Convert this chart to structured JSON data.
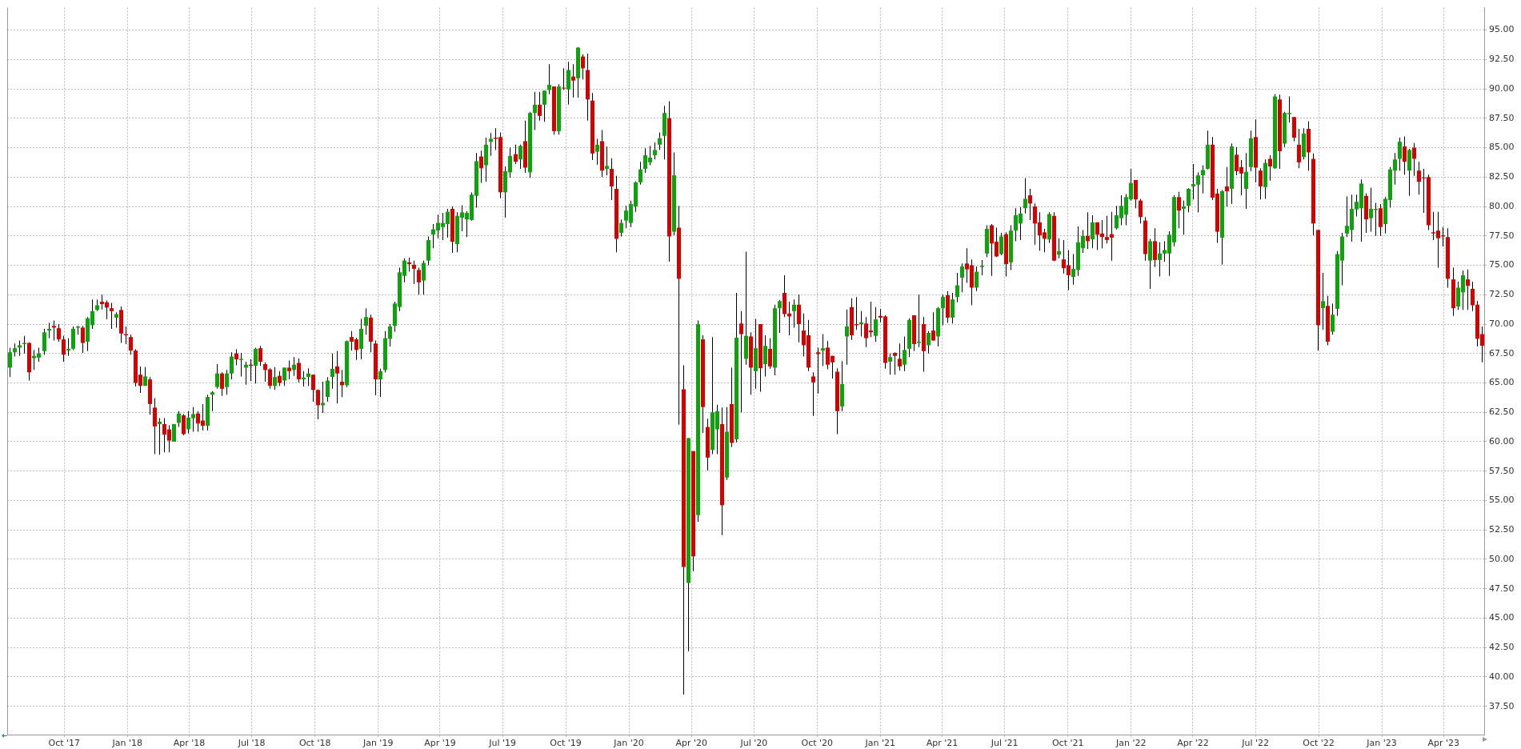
{
  "chart_data": {
    "type": "candlestick",
    "colors": [
      "#0ca30c",
      "#0ca30c",
      "#0ca30c",
      "#0ca30c",
      "#d50000",
      "#0ca30c",
      "#0ca30c",
      "#0ca30c",
      "#0ca30c",
      "#d50000",
      "#d50000",
      "#d50000",
      "#0ca30c",
      "#0ca30c",
      "#0ca30c",
      "#d50000",
      "#0ca30c",
      "#0ca30c",
      "#0ca30c",
      "#d50000",
      "#d50000",
      "#d50000",
      "#0ca30c",
      "#d50000",
      "#d50000",
      "#d50000",
      "#d50000",
      "#d50000",
      "#0ca30c",
      "#d50000",
      "#d50000",
      "#0ca30c",
      "#d50000",
      "#d50000",
      "#0ca30c",
      "#0ca30c",
      "#d50000",
      "#0ca30c",
      "#0ca30c",
      "#d50000",
      "#d50000",
      "#0ca30c",
      "#0ca30c",
      "#0ca30c",
      "#d50000",
      "#0ca30c",
      "#0ca30c",
      "#d50000",
      "#0ca30c",
      "#0ca30c",
      "#d50000",
      "#0ca30c",
      "#d50000",
      "#d50000",
      "#d50000",
      "#0ca30c",
      "#d50000",
      "#0ca30c",
      "#d50000",
      "#0ca30c",
      "#d50000",
      "#0ca30c",
      "#0ca30c",
      "#d50000",
      "#d50000",
      "#0ca30c",
      "#0ca30c",
      "#0ca30c",
      "#d50000",
      "#d50000",
      "#0ca30c",
      "#d50000",
      "#d50000",
      "#0ca30c",
      "#0ca30c",
      "#d50000",
      "#d50000",
      "#0ca30c",
      "#0ca30c",
      "#0ca30c",
      "#0ca30c",
      "#0ca30c",
      "#0ca30c",
      "#d50000",
      "#d50000",
      "#d50000",
      "#0ca30c",
      "#0ca30c",
      "#0ca30c",
      "#0ca30c",
      "#0ca30c",
      "#0ca30c",
      "#d50000",
      "#0ca30c",
      "#0ca30c",
      "#0ca30c",
      "#0ca30c",
      "#0ca30c",
      "#d50000",
      "#0ca30c",
      "#0ca30c",
      "#d50000",
      "#d50000",
      "#0ca30c",
      "#0ca30c",
      "#d50000",
      "#0ca30c",
      "#d50000",
      "#0ca30c",
      "#0ca30c",
      "#d50000",
      "#0ca30c",
      "#0ca30c",
      "#d50000",
      "#0ca30c",
      "#d50000",
      "#0ca30c",
      "#d50000",
      "#0ca30c",
      "#d50000",
      "#d50000",
      "#d50000",
      "#0ca30c",
      "#d50000",
      "#0ca30c",
      "#d50000",
      "#d50000",
      "#0ca30c",
      "#0ca30c",
      "#0ca30c",
      "#0ca30c",
      "#0ca30c",
      "#0ca30c",
      "#0ca30c",
      "#0ca30c",
      "#0ca30c",
      "#0ca30c",
      "#d50000",
      "#0ca30c",
      "#d50000",
      "#d50000",
      "#0ca30c",
      "#d50000",
      "#0ca30c",
      "#d50000",
      "#d50000",
      "#0ca30c",
      "#0ca30c",
      "#d50000",
      "#0ca30c",
      "#d50000",
      "#0ca30c",
      "#d50000",
      "#0ca30c",
      "#d50000",
      "#0ca30c",
      "#d50000",
      "#0ca30c",
      "#d50000",
      "#0ca30c",
      "#0ca30c",
      "#d50000",
      "#d50000",
      "#0ca30c",
      "#d50000",
      "#d50000",
      "#d50000",
      "#d50000",
      "#d50000",
      "#0ca30c",
      "#d50000",
      "#d50000",
      "#d50000",
      "#0ca30c",
      "#0ca30c",
      "#d50000",
      "#d50000",
      "#0ca30c",
      "#d50000",
      "#d50000",
      "#0ca30c",
      "#d50000",
      "#d50000",
      "#0ca30c",
      "#d50000",
      "#d50000",
      "#0ca30c",
      "#0ca30c",
      "#d50000",
      "#0ca30c",
      "#d50000",
      "#0ca30c",
      "#d50000",
      "#0ca30c",
      "#0ca30c",
      "#d50000",
      "#0ca30c",
      "#0ca30c",
      "#0ca30c",
      "#d50000",
      "#d50000",
      "#0ca30c",
      "#0ca30c",
      "#0ca30c",
      "#d50000",
      "#d50000",
      "#0ca30c",
      "#d50000",
      "#0ca30c",
      "#0ca30c",
      "#0ca30c",
      "#0ca30c",
      "#d50000",
      "#d50000",
      "#d50000",
      "#d50000",
      "#0ca30c",
      "#d50000",
      "#0ca30c",
      "#d50000",
      "#d50000",
      "#0ca30c",
      "#0ca30c",
      "#0ca30c",
      "#d50000",
      "#0ca30c",
      "#d50000",
      "#d50000",
      "#d50000",
      "#d50000",
      "#0ca30c",
      "#0ca30c",
      "#0ca30c",
      "#0ca30c",
      "#d50000",
      "#d50000",
      "#d50000",
      "#0ca30c",
      "#d50000",
      "#0ca30c",
      "#0ca30c",
      "#0ca30c",
      "#0ca30c",
      "#d50000",
      "#0ca30c",
      "#0ca30c",
      "#0ca30c",
      "#0ca30c",
      "#0ca30c",
      "#0ca30c",
      "#d50000",
      "#d50000",
      "#0ca30c",
      "#d50000",
      "#0ca30c",
      "#d50000",
      "#d50000",
      "#0ca30c",
      "#0ca30c",
      "#d50000",
      "#d50000",
      "#0ca30c",
      "#d50000",
      "#0ca30c",
      "#d50000",
      "#0ca30c",
      "#0ca30c",
      "#d50000",
      "#d50000",
      "#0ca30c",
      "#d50000",
      "#d50000",
      "#d50000",
      "#0ca30c",
      "#d50000",
      "#0ca30c",
      "#0ca30c",
      "#0ca30c",
      "#0ca30c",
      "#0ca30c",
      "#0ca30c",
      "#0ca30c",
      "#d50000",
      "#0ca30c",
      "#0ca30c",
      "#d50000",
      "#0ca30c",
      "#0ca30c",
      "#0ca30c",
      "#0ca30c",
      "#d50000",
      "#0ca30c",
      "#d50000",
      "#d50000",
      "#d50000",
      "#d50000",
      "#d50000",
      "#d50000",
      "#d50000",
      "#d50000",
      "#d50000",
      "#0ca30c",
      "#0ca30c",
      "#d50000",
      "#d50000",
      "#d50000",
      "#d50000"
    ],
    "grid": true,
    "ylim": [
      35.1,
      96.9
    ],
    "yticks": [
      {
        "value": 37.5,
        "label": "37.50"
      },
      {
        "value": 40,
        "label": "40.00"
      },
      {
        "value": 42.5,
        "label": "42.50"
      },
      {
        "value": 45,
        "label": "45.00"
      },
      {
        "value": 47.5,
        "label": "47.50"
      },
      {
        "value": 50,
        "label": "50.00"
      },
      {
        "value": 52.5,
        "label": "52.50"
      },
      {
        "value": 55,
        "label": "55.00"
      },
      {
        "value": 57.5,
        "label": "57.50"
      },
      {
        "value": 60,
        "label": "60.00"
      },
      {
        "value": 62.5,
        "label": "62.50"
      },
      {
        "value": 65,
        "label": "65.00"
      },
      {
        "value": 67.5,
        "label": "67.50"
      },
      {
        "value": 70,
        "label": "70.00"
      },
      {
        "value": 72.5,
        "label": "72.50"
      },
      {
        "value": 75,
        "label": "75.00"
      },
      {
        "value": 77.5,
        "label": "77.50"
      },
      {
        "value": 80,
        "label": "80.00"
      },
      {
        "value": 82.5,
        "label": "82.50"
      },
      {
        "value": 85,
        "label": "85.00"
      },
      {
        "value": 87.5,
        "label": "87.50"
      },
      {
        "value": 90,
        "label": "90.00"
      },
      {
        "value": 92.5,
        "label": "92.50"
      },
      {
        "value": 95,
        "label": "95.00"
      }
    ],
    "xlim": [
      "2017-07-10",
      "2023-05-30"
    ],
    "xticks": [
      {
        "value": "2017-10-01",
        "label": "Oct '17"
      },
      {
        "value": "2018-01-01",
        "label": "Jan '18"
      },
      {
        "value": "2018-04-01",
        "label": "Apr '18"
      },
      {
        "value": "2018-07-01",
        "label": "Jul '18"
      },
      {
        "value": "2018-10-01",
        "label": "Oct '18"
      },
      {
        "value": "2019-01-01",
        "label": "Jan '19"
      },
      {
        "value": "2019-04-01",
        "label": "Apr '19"
      },
      {
        "value": "2019-07-01",
        "label": "Jul '19"
      },
      {
        "value": "2019-10-01",
        "label": "Oct '19"
      },
      {
        "value": "2020-01-01",
        "label": "Jan '20"
      },
      {
        "value": "2020-04-01",
        "label": "Apr '20"
      },
      {
        "value": "2020-07-01",
        "label": "Jul '20"
      },
      {
        "value": "2020-10-01",
        "label": "Oct '20"
      },
      {
        "value": "2021-01-01",
        "label": "Jan '21"
      },
      {
        "value": "2021-04-01",
        "label": "Apr '21"
      },
      {
        "value": "2021-07-01",
        "label": "Jul '21"
      },
      {
        "value": "2021-10-01",
        "label": "Oct '21"
      },
      {
        "value": "2022-01-01",
        "label": "Jan '22"
      },
      {
        "value": "2022-04-01",
        "label": "Apr '22"
      },
      {
        "value": "2022-07-01",
        "label": "Jul '22"
      },
      {
        "value": "2022-10-01",
        "label": "Oct '22"
      },
      {
        "value": "2023-01-01",
        "label": "Jan '23"
      },
      {
        "value": "2023-04-01",
        "label": "Apr '23"
      }
    ],
    "x": [
      "2017-07-14",
      "2017-07-21",
      "2017-07-28",
      "2017-08-04",
      "2017-08-11",
      "2017-08-18",
      "2017-08-25",
      "2017-09-01",
      "2017-09-08",
      "2017-09-15",
      "2017-09-22",
      "2017-09-29",
      "2017-10-06",
      "2017-10-13",
      "2017-10-20",
      "2017-10-27",
      "2017-11-03",
      "2017-11-10",
      "2017-11-17",
      "2017-11-24",
      "2017-12-01",
      "2017-12-08",
      "2017-12-15",
      "2017-12-22",
      "2017-12-29",
      "2018-01-05",
      "2018-01-12",
      "2018-01-19",
      "2018-01-26",
      "2018-02-02",
      "2018-02-09",
      "2018-02-16",
      "2018-02-23",
      "2018-03-02",
      "2018-03-09",
      "2018-03-16",
      "2018-03-23",
      "2018-03-30",
      "2018-04-06",
      "2018-04-13",
      "2018-04-20",
      "2018-04-27",
      "2018-05-04",
      "2018-05-11",
      "2018-05-18",
      "2018-05-25",
      "2018-06-01",
      "2018-06-08",
      "2018-06-15",
      "2018-06-22",
      "2018-06-29",
      "2018-07-06",
      "2018-07-13",
      "2018-07-20",
      "2018-07-27",
      "2018-08-03",
      "2018-08-10",
      "2018-08-17",
      "2018-08-24",
      "2018-08-31",
      "2018-09-07",
      "2018-09-14",
      "2018-09-21",
      "2018-09-28",
      "2018-10-05",
      "2018-10-12",
      "2018-10-19",
      "2018-10-26",
      "2018-11-02",
      "2018-11-09",
      "2018-11-16",
      "2018-11-23",
      "2018-11-30",
      "2018-12-07",
      "2018-12-14",
      "2018-12-21",
      "2018-12-28",
      "2019-01-04",
      "2019-01-11",
      "2019-01-18",
      "2019-01-25",
      "2019-02-01",
      "2019-02-08",
      "2019-02-15",
      "2019-02-22",
      "2019-03-01",
      "2019-03-08",
      "2019-03-15",
      "2019-03-22",
      "2019-03-29",
      "2019-04-05",
      "2019-04-12",
      "2019-04-19",
      "2019-04-26",
      "2019-05-03",
      "2019-05-10",
      "2019-05-17",
      "2019-05-24",
      "2019-05-31",
      "2019-06-07",
      "2019-06-14",
      "2019-06-21",
      "2019-06-28",
      "2019-07-05",
      "2019-07-12",
      "2019-07-19",
      "2019-07-26",
      "2019-08-02",
      "2019-08-09",
      "2019-08-16",
      "2019-08-23",
      "2019-08-30",
      "2019-09-06",
      "2019-09-13",
      "2019-09-20",
      "2019-09-27",
      "2019-10-04",
      "2019-10-11",
      "2019-10-18",
      "2019-10-25",
      "2019-11-01",
      "2019-11-08",
      "2019-11-15",
      "2019-11-22",
      "2019-11-29",
      "2019-12-06",
      "2019-12-13",
      "2019-12-20",
      "2019-12-27",
      "2020-01-03",
      "2020-01-10",
      "2020-01-17",
      "2020-01-24",
      "2020-01-31",
      "2020-02-07",
      "2020-02-14",
      "2020-02-21",
      "2020-02-28",
      "2020-03-06",
      "2020-03-13",
      "2020-03-20",
      "2020-03-27",
      "2020-04-03",
      "2020-04-10",
      "2020-04-17",
      "2020-04-24",
      "2020-05-01",
      "2020-05-08",
      "2020-05-15",
      "2020-05-22",
      "2020-05-29",
      "2020-06-05",
      "2020-06-12",
      "2020-06-19",
      "2020-06-26",
      "2020-07-03",
      "2020-07-10",
      "2020-07-17",
      "2020-07-24",
      "2020-07-31",
      "2020-08-07",
      "2020-08-14",
      "2020-08-21",
      "2020-08-28",
      "2020-09-04",
      "2020-09-11",
      "2020-09-18",
      "2020-09-25",
      "2020-10-02",
      "2020-10-09",
      "2020-10-16",
      "2020-10-23",
      "2020-10-30",
      "2020-11-06",
      "2020-11-13",
      "2020-11-20",
      "2020-11-27",
      "2020-12-04",
      "2020-12-11",
      "2020-12-18",
      "2020-12-25",
      "2021-01-01",
      "2021-01-08",
      "2021-01-15",
      "2021-01-22",
      "2021-01-29",
      "2021-02-05",
      "2021-02-12",
      "2021-02-19",
      "2021-02-26",
      "2021-03-05",
      "2021-03-12",
      "2021-03-19",
      "2021-03-26",
      "2021-04-02",
      "2021-04-09",
      "2021-04-16",
      "2021-04-23",
      "2021-04-30",
      "2021-05-07",
      "2021-05-14",
      "2021-05-21",
      "2021-05-28",
      "2021-06-04",
      "2021-06-11",
      "2021-06-18",
      "2021-06-25",
      "2021-07-02",
      "2021-07-09",
      "2021-07-16",
      "2021-07-23",
      "2021-07-30",
      "2021-08-06",
      "2021-08-13",
      "2021-08-20",
      "2021-08-27",
      "2021-09-03",
      "2021-09-10",
      "2021-09-17",
      "2021-09-24",
      "2021-10-01",
      "2021-10-08",
      "2021-10-15",
      "2021-10-22",
      "2021-10-29",
      "2021-11-05",
      "2021-11-12",
      "2021-11-19",
      "2021-11-26",
      "2021-12-03",
      "2021-12-10",
      "2021-12-17",
      "2021-12-24",
      "2021-12-31",
      "2022-01-07",
      "2022-01-14",
      "2022-01-21",
      "2022-01-28",
      "2022-02-04",
      "2022-02-11",
      "2022-02-18",
      "2022-02-25",
      "2022-03-04",
      "2022-03-11",
      "2022-03-18",
      "2022-03-25",
      "2022-04-01",
      "2022-04-08",
      "2022-04-15",
      "2022-04-22",
      "2022-04-29",
      "2022-05-06",
      "2022-05-13",
      "2022-05-20",
      "2022-05-27",
      "2022-06-03",
      "2022-06-10",
      "2022-06-17",
      "2022-06-24",
      "2022-07-01",
      "2022-07-08",
      "2022-07-15",
      "2022-07-22",
      "2022-07-29",
      "2022-08-05",
      "2022-08-12",
      "2022-08-19",
      "2022-08-26",
      "2022-09-02",
      "2022-09-09",
      "2022-09-16",
      "2022-09-23",
      "2022-09-30",
      "2022-10-07",
      "2022-10-14",
      "2022-10-21",
      "2022-10-28",
      "2022-11-04",
      "2022-11-11",
      "2022-11-18",
      "2022-11-25",
      "2022-12-02",
      "2022-12-09",
      "2022-12-16",
      "2022-12-23",
      "2022-12-30",
      "2023-01-06",
      "2023-01-13",
      "2023-01-20",
      "2023-01-27",
      "2023-02-03",
      "2023-02-10",
      "2023-02-17",
      "2023-02-24",
      "2023-03-03",
      "2023-03-10",
      "2023-03-17",
      "2023-03-24",
      "2023-03-31",
      "2023-04-07",
      "2023-04-14",
      "2023-04-21",
      "2023-04-28",
      "2023-05-05",
      "2023-05-12",
      "2023-05-19",
      "2023-05-26"
    ],
    "ohlc": [
      [
        66.3,
        68.0,
        65.5,
        67.6
      ],
      [
        67.6,
        68.35,
        67.25,
        67.95
      ],
      [
        68.0,
        68.6,
        67.3,
        68.2
      ],
      [
        68.3,
        69.0,
        67.5,
        68.4
      ],
      [
        68.4,
        68.45,
        65.2,
        65.9
      ],
      [
        67.1,
        67.8,
        66.1,
        67.3
      ],
      [
        67.15,
        68.0,
        66.8,
        67.5
      ],
      [
        67.7,
        69.6,
        67.4,
        69.3
      ],
      [
        69.45,
        70.1,
        68.8,
        69.6
      ],
      [
        69.85,
        70.3,
        68.6,
        69.7
      ],
      [
        69.65,
        70.0,
        68.5,
        68.7
      ],
      [
        68.7,
        69.0,
        66.8,
        67.4
      ],
      [
        67.75,
        68.8,
        67.3,
        67.9
      ],
      [
        67.9,
        69.8,
        67.8,
        69.6
      ],
      [
        69.7,
        69.85,
        69.1,
        69.8
      ],
      [
        69.7,
        69.85,
        67.55,
        68.4
      ],
      [
        68.5,
        70.6,
        67.7,
        70.5
      ],
      [
        69.9,
        72.1,
        69.6,
        71.1
      ],
      [
        71.2,
        72.1,
        71.1,
        71.6
      ],
      [
        71.9,
        72.5,
        71.25,
        71.7
      ],
      [
        71.85,
        72.0,
        70.4,
        71.4
      ],
      [
        71.35,
        71.8,
        69.6,
        71.1
      ],
      [
        70.55,
        71.0,
        69.7,
        70.85
      ],
      [
        71.2,
        71.5,
        68.4,
        69.2
      ],
      [
        69.15,
        69.8,
        68.3,
        69.05
      ],
      [
        68.9,
        69.1,
        67.4,
        67.75
      ],
      [
        67.75,
        67.85,
        64.7,
        65.0
      ],
      [
        65.7,
        66.4,
        64.15,
        64.75
      ],
      [
        64.75,
        66.35,
        64.75,
        65.55
      ],
      [
        65.3,
        65.5,
        62.3,
        63.2
      ],
      [
        62.9,
        63.7,
        58.95,
        61.3
      ],
      [
        61.5,
        62.0,
        58.9,
        61.7
      ],
      [
        61.5,
        62.0,
        59.1,
        60.6
      ],
      [
        61.05,
        61.4,
        59.1,
        60.1
      ],
      [
        60.0,
        61.5,
        60.0,
        61.5
      ],
      [
        61.6,
        62.6,
        61.25,
        62.4
      ],
      [
        62.25,
        62.35,
        60.55,
        60.65
      ],
      [
        61.05,
        62.6,
        60.7,
        62.05
      ],
      [
        62.0,
        62.95,
        60.85,
        62.35
      ],
      [
        62.4,
        62.6,
        60.85,
        61.55
      ],
      [
        61.8,
        63.2,
        60.95,
        61.35
      ],
      [
        61.35,
        64.0,
        60.95,
        63.8
      ],
      [
        64.0,
        64.3,
        62.6,
        64.2
      ],
      [
        64.65,
        66.6,
        64.5,
        65.8
      ],
      [
        65.8,
        65.9,
        63.9,
        64.5
      ],
      [
        64.65,
        66.1,
        64.0,
        65.8
      ],
      [
        65.8,
        67.6,
        65.3,
        67.25
      ],
      [
        67.5,
        67.85,
        66.5,
        67.0
      ],
      [
        66.95,
        67.55,
        65.55,
        67.05
      ],
      [
        66.3,
        66.8,
        64.85,
        66.55
      ],
      [
        66.55,
        67.0,
        65.15,
        66.45
      ],
      [
        66.45,
        68.0,
        64.95,
        67.9
      ],
      [
        67.95,
        68.15,
        66.45,
        66.8
      ],
      [
        66.6,
        66.75,
        65.1,
        66.1
      ],
      [
        66.15,
        66.25,
        64.5,
        64.75
      ],
      [
        64.75,
        66.35,
        64.4,
        65.5
      ],
      [
        65.6,
        66.0,
        64.75,
        65.0
      ],
      [
        65.2,
        66.3,
        64.75,
        66.3
      ],
      [
        66.3,
        66.9,
        65.3,
        66.0
      ],
      [
        66.1,
        67.2,
        65.6,
        66.55
      ],
      [
        66.7,
        67.1,
        65.05,
        65.3
      ],
      [
        65.3,
        66.0,
        64.7,
        65.45
      ],
      [
        65.5,
        66.25,
        64.75,
        65.8
      ],
      [
        65.7,
        65.7,
        63.4,
        64.4
      ],
      [
        64.4,
        64.45,
        61.9,
        63.1
      ],
      [
        63.1,
        65.1,
        62.45,
        63.3
      ],
      [
        63.8,
        65.5,
        63.4,
        65.2
      ],
      [
        65.5,
        67.5,
        64.5,
        66.2
      ],
      [
        66.4,
        67.7,
        63.25,
        65.8
      ],
      [
        65.1,
        66.1,
        63.8,
        64.8
      ],
      [
        64.8,
        68.6,
        64.65,
        68.55
      ],
      [
        68.9,
        69.4,
        67.75,
        68.5
      ],
      [
        68.7,
        68.85,
        66.95,
        67.8
      ],
      [
        67.9,
        70.45,
        67.0,
        69.6
      ],
      [
        69.85,
        71.35,
        69.1,
        70.6
      ],
      [
        70.55,
        70.8,
        67.6,
        68.5
      ],
      [
        68.35,
        68.6,
        63.95,
        65.3
      ],
      [
        65.3,
        66.2,
        63.8,
        66.0
      ],
      [
        66.1,
        69.4,
        65.9,
        68.8
      ],
      [
        68.75,
        70.0,
        68.1,
        69.8
      ],
      [
        69.85,
        71.9,
        69.35,
        71.75
      ],
      [
        71.45,
        74.8,
        71.1,
        74.4
      ],
      [
        74.1,
        75.6,
        73.55,
        75.4
      ],
      [
        75.25,
        75.65,
        74.45,
        75.1
      ],
      [
        75.05,
        75.4,
        73.4,
        74.7
      ],
      [
        74.6,
        74.8,
        72.5,
        73.55
      ],
      [
        73.7,
        75.4,
        72.5,
        75.2
      ],
      [
        75.4,
        77.45,
        75.0,
        77.15
      ],
      [
        77.6,
        78.5,
        76.45,
        78.05
      ],
      [
        77.95,
        79.3,
        77.3,
        78.6
      ],
      [
        78.25,
        79.45,
        77.15,
        78.6
      ],
      [
        78.5,
        79.8,
        77.35,
        79.55
      ],
      [
        79.8,
        80.0,
        76.05,
        77.0
      ],
      [
        76.8,
        79.5,
        76.1,
        79.2
      ],
      [
        79.05,
        80.1,
        77.9,
        79.5
      ],
      [
        78.9,
        79.6,
        77.4,
        79.45
      ],
      [
        78.85,
        81.2,
        78.8,
        81.0
      ],
      [
        80.9,
        84.55,
        79.9,
        83.85
      ],
      [
        84.25,
        84.75,
        82.0,
        83.25
      ],
      [
        83.5,
        85.85,
        82.1,
        85.25
      ],
      [
        85.5,
        86.25,
        84.3,
        85.75
      ],
      [
        85.85,
        86.65,
        84.8,
        85.75
      ],
      [
        85.9,
        86.3,
        80.7,
        81.2
      ],
      [
        81.2,
        83.4,
        79.05,
        83.0
      ],
      [
        82.9,
        85.0,
        82.45,
        84.3
      ],
      [
        84.45,
        85.25,
        83.6,
        83.8
      ],
      [
        84.0,
        85.25,
        83.2,
        85.15
      ],
      [
        85.55,
        87.3,
        82.85,
        83.3
      ],
      [
        82.9,
        88.05,
        82.45,
        87.95
      ],
      [
        87.95,
        89.75,
        86.5,
        88.65
      ],
      [
        88.65,
        89.75,
        87.3,
        87.7
      ],
      [
        88.65,
        89.85,
        87.2,
        89.85
      ],
      [
        89.9,
        92.1,
        89.55,
        90.35
      ],
      [
        90.2,
        90.2,
        86.1,
        86.4
      ],
      [
        86.4,
        90.4,
        86.1,
        90.2
      ],
      [
        90.1,
        91.75,
        89.9,
        90.05
      ],
      [
        89.95,
        92.3,
        88.65,
        91.6
      ],
      [
        91.05,
        92.1,
        89.25,
        90.7
      ],
      [
        90.9,
        93.55,
        89.25,
        93.5
      ],
      [
        92.75,
        92.95,
        90.8,
        91.75
      ],
      [
        91.6,
        93.0,
        87.3,
        89.1
      ],
      [
        89.0,
        89.65,
        83.95,
        84.5
      ],
      [
        84.65,
        85.75,
        83.55,
        85.25
      ],
      [
        85.55,
        86.5,
        82.5,
        83.05
      ],
      [
        83.2,
        85.1,
        82.65,
        83.45
      ],
      [
        83.2,
        84.1,
        80.55,
        81.7
      ],
      [
        81.5,
        82.6,
        76.1,
        77.25
      ],
      [
        77.75,
        78.9,
        77.45,
        78.6
      ],
      [
        78.8,
        80.05,
        78.15,
        79.65
      ],
      [
        78.6,
        80.5,
        78.25,
        80.2
      ],
      [
        80.0,
        82.15,
        79.55,
        82.05
      ],
      [
        82.05,
        83.8,
        81.85,
        83.15
      ],
      [
        83.2,
        84.95,
        82.85,
        84.35
      ],
      [
        83.75,
        85.15,
        83.5,
        84.15
      ],
      [
        84.35,
        85.45,
        84.0,
        84.8
      ],
      [
        85.25,
        86.3,
        84.8,
        85.8
      ],
      [
        86.0,
        88.55,
        84.0,
        87.95
      ],
      [
        87.5,
        88.95,
        75.3,
        77.45
      ],
      [
        77.85,
        84.6,
        77.55,
        82.65
      ],
      [
        78.2,
        80.05,
        61.45,
        73.85
      ],
      [
        64.45,
        66.5,
        38.5,
        49.35
      ],
      [
        48.0,
        60.3,
        42.2,
        60.3
      ],
      [
        59.2,
        59.2,
        49.0,
        50.25
      ],
      [
        53.75,
        70.3,
        53.2,
        70.0
      ],
      [
        68.7,
        69.05,
        60.75,
        62.95
      ],
      [
        61.25,
        61.95,
        57.55,
        58.65
      ],
      [
        59.3,
        68.9,
        58.95,
        62.5
      ],
      [
        61.05,
        63.15,
        58.95,
        62.6
      ],
      [
        61.5,
        62.9,
        52.05,
        54.6
      ],
      [
        56.95,
        62.95,
        56.75,
        60.85
      ],
      [
        63.2,
        66.3,
        59.55,
        59.9
      ],
      [
        60.2,
        72.65,
        59.95,
        68.85
      ],
      [
        70.05,
        71.1,
        62.5,
        69.15
      ],
      [
        67.05,
        76.15,
        66.55,
        69.0
      ],
      [
        68.95,
        69.3,
        64.0,
        66.3
      ],
      [
        66.0,
        70.45,
        64.5,
        67.95
      ],
      [
        70.0,
        70.0,
        64.25,
        66.25
      ],
      [
        66.6,
        69.05,
        65.55,
        68.15
      ],
      [
        67.9,
        68.8,
        66.2,
        66.4
      ],
      [
        66.3,
        71.65,
        65.65,
        71.35
      ],
      [
        71.35,
        72.05,
        69.25,
        71.95
      ],
      [
        72.65,
        74.15,
        70.6,
        70.85
      ],
      [
        70.9,
        71.9,
        69.05,
        70.65
      ],
      [
        71.1,
        72.1,
        69.7,
        71.65
      ],
      [
        71.65,
        72.5,
        68.45,
        70.0
      ],
      [
        69.45,
        70.9,
        67.25,
        68.2
      ],
      [
        69.05,
        70.35,
        66.0,
        66.3
      ],
      [
        65.55,
        65.9,
        62.2,
        65.05
      ],
      [
        67.6,
        68.0,
        64.1,
        67.45
      ],
      [
        67.75,
        69.15,
        66.45,
        67.95
      ],
      [
        68.0,
        68.55,
        66.15,
        66.55
      ],
      [
        67.3,
        67.3,
        65.35,
        66.75
      ],
      [
        65.95,
        66.25,
        60.65,
        62.6
      ],
      [
        63.0,
        66.85,
        62.6,
        64.9
      ],
      [
        68.95,
        71.25,
        66.55,
        69.8
      ],
      [
        71.45,
        72.2,
        68.65,
        69.05
      ],
      [
        70.0,
        72.3,
        69.5,
        69.9
      ],
      [
        70.0,
        71.1,
        68.95,
        70.15
      ],
      [
        70.05,
        70.6,
        68.05,
        68.8
      ],
      [
        69.45,
        71.9,
        68.9,
        69.3
      ],
      [
        69.0,
        71.45,
        68.5,
        70.4
      ],
      [
        70.7,
        71.3,
        70.15,
        70.55
      ],
      [
        70.65,
        70.75,
        66.2,
        66.7
      ],
      [
        66.8,
        67.5,
        65.7,
        67.2
      ],
      [
        67.55,
        67.6,
        65.7,
        67.3
      ],
      [
        67.05,
        68.35,
        66.05,
        66.4
      ],
      [
        66.55,
        68.95,
        66.0,
        67.8
      ],
      [
        67.9,
        70.5,
        67.2,
        70.35
      ],
      [
        70.75,
        70.75,
        67.7,
        68.3
      ],
      [
        68.4,
        72.5,
        68.05,
        68.5
      ],
      [
        70.0,
        70.6,
        65.95,
        67.7
      ],
      [
        68.2,
        69.4,
        67.5,
        69.25
      ],
      [
        69.45,
        71.0,
        68.6,
        68.6
      ],
      [
        68.95,
        71.45,
        68.1,
        71.35
      ],
      [
        71.35,
        72.5,
        69.9,
        72.3
      ],
      [
        72.45,
        72.8,
        70.1,
        70.55
      ],
      [
        70.55,
        72.65,
        70.05,
        72.1
      ],
      [
        72.3,
        74.35,
        71.85,
        73.3
      ],
      [
        73.95,
        75.15,
        72.7,
        74.9
      ],
      [
        75.15,
        76.45,
        73.5,
        74.65
      ],
      [
        75.0,
        75.5,
        71.6,
        73.1
      ],
      [
        73.1,
        74.9,
        72.8,
        74.45
      ],
      [
        74.85,
        75.45,
        74.15,
        74.95
      ],
      [
        76.0,
        78.4,
        75.7,
        78.1
      ],
      [
        78.4,
        78.5,
        74.1,
        76.85
      ],
      [
        77.0,
        78.2,
        75.7,
        75.75
      ],
      [
        75.95,
        77.75,
        75.85,
        77.45
      ],
      [
        77.65,
        77.8,
        74.05,
        75.1
      ],
      [
        75.25,
        78.4,
        74.6,
        77.95
      ],
      [
        77.95,
        79.85,
        77.05,
        79.25
      ],
      [
        78.55,
        79.95,
        77.15,
        79.4
      ],
      [
        79.85,
        82.4,
        79.4,
        80.65
      ],
      [
        80.95,
        81.5,
        78.85,
        80.25
      ],
      [
        80.0,
        80.25,
        76.75,
        78.55
      ],
      [
        78.65,
        79.5,
        76.25,
        77.55
      ],
      [
        77.8,
        78.1,
        76.1,
        77.25
      ],
      [
        77.2,
        79.5,
        76.9,
        79.35
      ],
      [
        79.2,
        79.5,
        75.35,
        75.4
      ],
      [
        75.9,
        77.3,
        75.6,
        76.2
      ],
      [
        75.5,
        77.15,
        74.3,
        74.75
      ],
      [
        75.0,
        76.3,
        72.9,
        74.15
      ],
      [
        74.0,
        75.95,
        73.35,
        74.7
      ],
      [
        74.6,
        78.3,
        74.1,
        76.95
      ],
      [
        76.45,
        78.0,
        76.05,
        77.5
      ],
      [
        77.5,
        79.5,
        76.4,
        77.05
      ],
      [
        77.2,
        79.25,
        76.45,
        78.65
      ],
      [
        78.65,
        78.65,
        76.3,
        77.6
      ],
      [
        77.7,
        78.85,
        76.45,
        77.4
      ],
      [
        77.4,
        79.2,
        76.85,
        77.15
      ],
      [
        77.65,
        79.55,
        75.4,
        77.35
      ],
      [
        78.15,
        80.05,
        78.05,
        79.25
      ],
      [
        79.0,
        80.95,
        78.4,
        80.05
      ],
      [
        79.3,
        81.05,
        78.4,
        80.8
      ],
      [
        80.6,
        83.2,
        80.5,
        82.0
      ],
      [
        82.25,
        82.25,
        79.85,
        80.6
      ],
      [
        80.5,
        80.65,
        78.55,
        79.1
      ],
      [
        78.8,
        79.1,
        75.4,
        75.95
      ],
      [
        75.4,
        77.25,
        73.0,
        77.05
      ],
      [
        77.05,
        78.15,
        74.85,
        75.45
      ],
      [
        75.45,
        76.95,
        74.05,
        76.0
      ],
      [
        76.0,
        77.05,
        75.3,
        76.3
      ],
      [
        76.0,
        77.9,
        74.1,
        77.6
      ],
      [
        76.95,
        80.95,
        76.6,
        80.8
      ],
      [
        80.8,
        81.25,
        78.15,
        79.65
      ],
      [
        79.8,
        80.5,
        77.6,
        80.0
      ],
      [
        80.05,
        81.55,
        79.5,
        81.5
      ],
      [
        81.7,
        83.6,
        80.6,
        81.9
      ],
      [
        81.85,
        82.9,
        79.5,
        82.65
      ],
      [
        82.65,
        83.5,
        81.1,
        83.1
      ],
      [
        83.2,
        86.45,
        83.15,
        85.25
      ],
      [
        85.25,
        85.9,
        80.55,
        80.75
      ],
      [
        81.1,
        81.5,
        76.9,
        77.85
      ],
      [
        77.35,
        81.4,
        75.05,
        81.3
      ],
      [
        81.7,
        83.35,
        80.0,
        81.3
      ],
      [
        81.5,
        85.35,
        80.2,
        85.1
      ],
      [
        84.4,
        85.05,
        82.65,
        83.0
      ],
      [
        83.35,
        83.95,
        80.95,
        82.8
      ],
      [
        81.5,
        84.55,
        79.8,
        82.95
      ],
      [
        83.35,
        86.45,
        83.0,
        85.8
      ],
      [
        85.9,
        87.4,
        82.05,
        83.3
      ],
      [
        83.05,
        83.25,
        80.6,
        81.7
      ],
      [
        81.65,
        84.0,
        80.65,
        83.7
      ],
      [
        84.05,
        84.35,
        82.2,
        83.4
      ],
      [
        83.25,
        89.55,
        83.2,
        89.35
      ],
      [
        89.1,
        89.5,
        83.2,
        84.7
      ],
      [
        85.35,
        88.05,
        85.05,
        87.95
      ],
      [
        87.85,
        89.35,
        87.15,
        87.95
      ],
      [
        87.6,
        87.6,
        85.55,
        85.85
      ],
      [
        85.25,
        86.6,
        83.25,
        83.75
      ],
      [
        84.2,
        86.65,
        84.0,
        86.2
      ],
      [
        86.6,
        87.25,
        83.05,
        84.6
      ],
      [
        84.05,
        84.5,
        77.55,
        78.55
      ],
      [
        78.0,
        78.0,
        67.75,
        69.9
      ],
      [
        71.35,
        74.35,
        69.5,
        71.95
      ],
      [
        71.55,
        72.4,
        68.2,
        68.5
      ],
      [
        69.35,
        71.75,
        69.1,
        70.8
      ],
      [
        71.3,
        76.2,
        70.7,
        75.95
      ],
      [
        75.4,
        77.75,
        73.3,
        77.45
      ],
      [
        77.7,
        80.85,
        77.4,
        78.35
      ],
      [
        78.0,
        81.0,
        77.0,
        79.8
      ],
      [
        79.75,
        81.0,
        79.15,
        80.4
      ],
      [
        79.85,
        82.3,
        77.0,
        81.95
      ],
      [
        80.9,
        81.1,
        77.75,
        78.9
      ],
      [
        79.0,
        81.6,
        77.85,
        79.8
      ],
      [
        79.7,
        80.3,
        77.5,
        79.8
      ],
      [
        79.85,
        80.2,
        77.5,
        78.25
      ],
      [
        78.5,
        80.8,
        77.7,
        80.65
      ],
      [
        80.55,
        83.35,
        79.9,
        83.15
      ],
      [
        83.05,
        84.55,
        81.85,
        84.0
      ],
      [
        84.05,
        85.85,
        83.05,
        85.5
      ],
      [
        85.1,
        85.95,
        82.7,
        83.8
      ],
      [
        83.05,
        84.9,
        80.9,
        84.8
      ],
      [
        85.0,
        85.4,
        82.6,
        84.05
      ],
      [
        83.05,
        83.8,
        81.0,
        82.1
      ],
      [
        82.45,
        83.2,
        79.45,
        82.4
      ],
      [
        82.5,
        82.7,
        78.0,
        78.4
      ],
      [
        77.8,
        79.55,
        77.15,
        77.7
      ],
      [
        77.95,
        79.55,
        74.8,
        77.3
      ],
      [
        77.55,
        78.25,
        76.6,
        77.45
      ],
      [
        77.4,
        78.15,
        73.1,
        73.85
      ],
      [
        73.8,
        74.8,
        70.7,
        71.35
      ],
      [
        71.5,
        73.6,
        71.2,
        73.1
      ],
      [
        72.7,
        74.55,
        71.2,
        74.15
      ],
      [
        73.8,
        74.65,
        71.2,
        73.25
      ],
      [
        73.0,
        73.6,
        71.1,
        71.6
      ],
      [
        71.65,
        71.95,
        68.1,
        68.75
      ],
      [
        69.15,
        69.8,
        66.75,
        68.15
      ]
    ]
  }
}
